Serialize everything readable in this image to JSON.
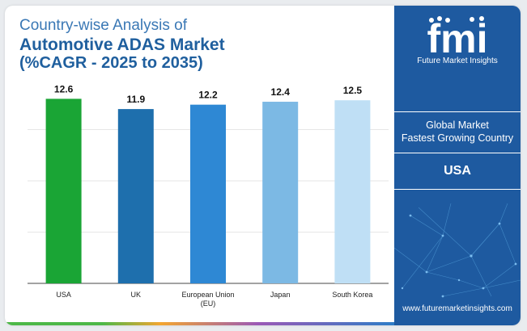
{
  "title": {
    "line1": "Country-wise Analysis of",
    "line2": "Automotive ADAS Market",
    "line3": "(%CAGR - 2025 to 2035)"
  },
  "chart_data": {
    "type": "bar",
    "title": "Country-wise Analysis of Automotive ADAS Market (%CAGR - 2025 to 2035)",
    "categories": [
      [
        "USA"
      ],
      [
        "UK"
      ],
      [
        "European Union",
        "(EU)"
      ],
      [
        "Japan"
      ],
      [
        "South Korea"
      ]
    ],
    "values": [
      12.6,
      11.9,
      12.2,
      12.4,
      12.5
    ],
    "value_labels": [
      "12.6",
      "11.9",
      "12.2",
      "12.4",
      "12.5"
    ],
    "bar_colors": [
      "#1aa535",
      "#1e6fad",
      "#2e88d4",
      "#7cb9e4",
      "#bfdff5"
    ],
    "ylim": [
      0,
      14
    ],
    "grid": true,
    "xlabel": "",
    "ylabel": ""
  },
  "panel": {
    "brand": "Future Market Insights",
    "logo_text": "fmi",
    "line1": "Global Market",
    "line2": "Fastest Growing Country",
    "country": "USA",
    "website": "www.futuremarketinsights.com"
  },
  "colors": {
    "panel_bg": "#1e5aa0",
    "title_light": "#3a78b5",
    "title_dark": "#1f5f9e"
  }
}
